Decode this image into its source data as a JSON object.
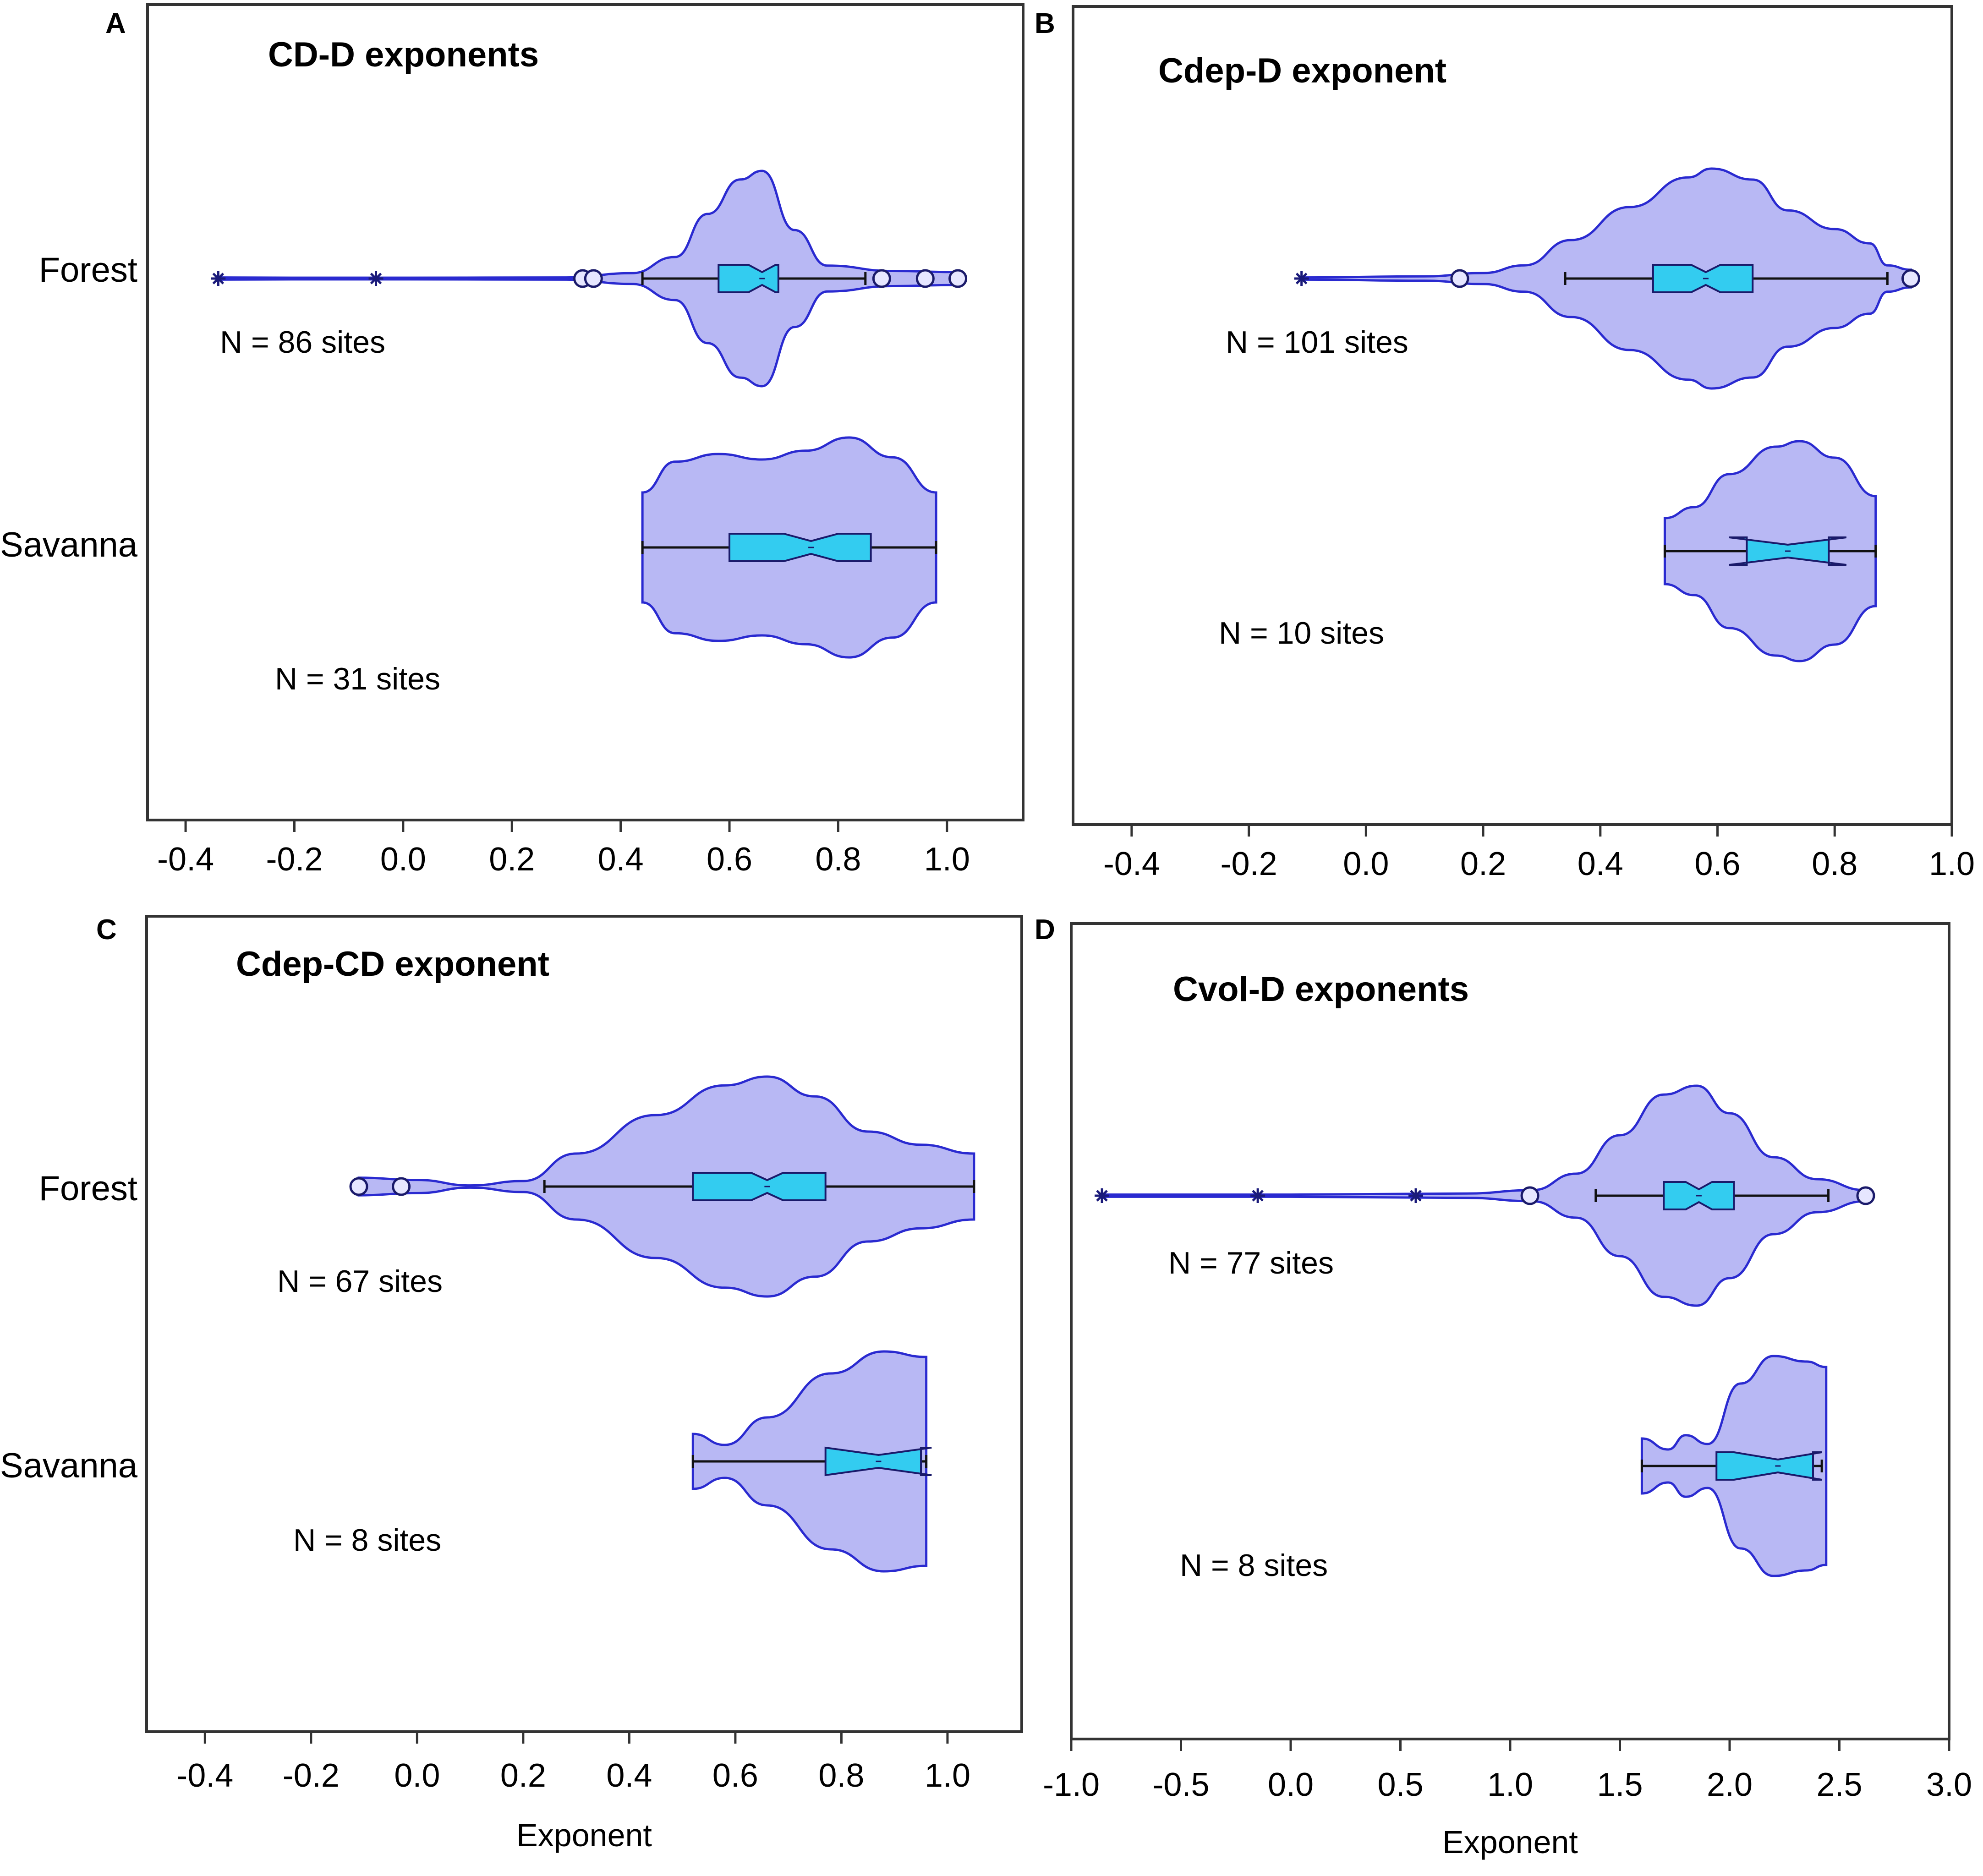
{
  "figure": {
    "colors": {
      "violin_fill": "#b8b8f4",
      "violin_stroke": "#2a2ad0",
      "box_fill": "#33ccf0",
      "axis": "#333333"
    }
  },
  "chart_data": [
    {
      "panel": "A",
      "type": "violin",
      "title": "CD-D exponents",
      "xlabel": "",
      "xlim": [
        -0.47,
        1.14
      ],
      "xticks": [
        -0.4,
        -0.2,
        0.0,
        0.2,
        0.4,
        0.6,
        0.8,
        1.0
      ],
      "xtick_labels": [
        "-0.4",
        "-0.2",
        "0.0",
        "0.2",
        "0.4",
        "0.6",
        "0.8",
        "1.0"
      ],
      "groups": [
        {
          "name": "Forest",
          "n_label": "N = 86 sites",
          "whisker_low": 0.44,
          "q1": 0.58,
          "median": 0.66,
          "q3": 0.69,
          "whisker_high": 0.85,
          "notch": 0.025,
          "outliers_circle": [
            0.33,
            0.35,
            0.88,
            0.96,
            1.02
          ],
          "outliers_star": [
            -0.34,
            -0.05
          ],
          "density": [
            [
              -0.34,
              0.01
            ],
            [
              -0.2,
              0.008
            ],
            [
              0.0,
              0.008
            ],
            [
              0.3,
              0.01
            ],
            [
              0.42,
              0.05
            ],
            [
              0.5,
              0.2
            ],
            [
              0.56,
              0.6
            ],
            [
              0.62,
              0.92
            ],
            [
              0.66,
              1.0
            ],
            [
              0.72,
              0.45
            ],
            [
              0.78,
              0.12
            ],
            [
              0.9,
              0.07
            ],
            [
              1.02,
              0.06
            ]
          ]
        },
        {
          "name": "Savanna",
          "n_label": "N = 31 sites",
          "whisker_low": 0.44,
          "q1": 0.6,
          "median": 0.75,
          "q3": 0.86,
          "whisker_high": 0.98,
          "notch": 0.05,
          "outliers_circle": [],
          "outliers_star": [],
          "density": [
            [
              0.44,
              0.5
            ],
            [
              0.5,
              0.78
            ],
            [
              0.58,
              0.85
            ],
            [
              0.66,
              0.8
            ],
            [
              0.74,
              0.88
            ],
            [
              0.82,
              1.0
            ],
            [
              0.9,
              0.82
            ],
            [
              0.98,
              0.5
            ]
          ]
        }
      ]
    },
    {
      "panel": "B",
      "type": "violin",
      "title": "Cdep-D exponent",
      "xlabel": "",
      "xlim": [
        -0.5,
        1.0
      ],
      "xticks": [
        -0.4,
        -0.2,
        0.0,
        0.2,
        0.4,
        0.6,
        0.8,
        1.0
      ],
      "xtick_labels": [
        "-0.4",
        "-0.2",
        "0.0",
        "0.2",
        "0.4",
        "0.6",
        "0.8",
        "1.0"
      ],
      "groups": [
        {
          "name": "Forest",
          "n_label": "N = 101 sites",
          "whisker_low": 0.34,
          "q1": 0.49,
          "median": 0.58,
          "q3": 0.66,
          "whisker_high": 0.89,
          "notch": 0.025,
          "outliers_circle": [
            0.16,
            0.93
          ],
          "outliers_star": [
            -0.11
          ],
          "density": [
            [
              -0.11,
              0.01
            ],
            [
              0.1,
              0.02
            ],
            [
              0.2,
              0.05
            ],
            [
              0.27,
              0.12
            ],
            [
              0.35,
              0.35
            ],
            [
              0.45,
              0.65
            ],
            [
              0.55,
              0.92
            ],
            [
              0.59,
              1.0
            ],
            [
              0.66,
              0.9
            ],
            [
              0.72,
              0.62
            ],
            [
              0.8,
              0.45
            ],
            [
              0.86,
              0.32
            ],
            [
              0.89,
              0.12
            ],
            [
              0.93,
              0.08
            ]
          ]
        },
        {
          "name": "Savanna",
          "n_label": "N = 10 sites",
          "whisker_low": 0.51,
          "q1": 0.65,
          "median": 0.72,
          "q3": 0.79,
          "whisker_high": 0.87,
          "notch": 0.1,
          "outliers_circle": [],
          "outliers_star": [],
          "density": [
            [
              0.51,
              0.3
            ],
            [
              0.56,
              0.4
            ],
            [
              0.62,
              0.7
            ],
            [
              0.7,
              0.95
            ],
            [
              0.74,
              1.0
            ],
            [
              0.8,
              0.85
            ],
            [
              0.87,
              0.5
            ]
          ]
        }
      ]
    },
    {
      "panel": "C",
      "type": "violin",
      "title": "Cdep-CD exponent",
      "xlabel": "Exponent",
      "xlim": [
        -0.51,
        1.14
      ],
      "xticks": [
        -0.4,
        -0.2,
        0.0,
        0.2,
        0.4,
        0.6,
        0.8,
        1.0
      ],
      "xtick_labels": [
        "-0.4",
        "-0.2",
        "0.0",
        "0.2",
        "0.4",
        "0.6",
        "0.8",
        "1.0"
      ],
      "groups": [
        {
          "name": "Forest",
          "n_label": "N = 67 sites",
          "whisker_low": 0.24,
          "q1": 0.52,
          "median": 0.66,
          "q3": 0.77,
          "whisker_high": 1.05,
          "notch": 0.03,
          "outliers_circle": [
            -0.11,
            -0.03
          ],
          "outliers_star": [],
          "density": [
            [
              -0.11,
              0.08
            ],
            [
              0.0,
              0.06
            ],
            [
              0.1,
              0.01
            ],
            [
              0.2,
              0.05
            ],
            [
              0.3,
              0.3
            ],
            [
              0.45,
              0.65
            ],
            [
              0.58,
              0.92
            ],
            [
              0.66,
              1.0
            ],
            [
              0.75,
              0.82
            ],
            [
              0.85,
              0.5
            ],
            [
              0.95,
              0.38
            ],
            [
              1.05,
              0.3
            ]
          ]
        },
        {
          "name": "Savanna",
          "n_label": "N = 8 sites",
          "whisker_low": 0.52,
          "q1": 0.77,
          "median": 0.87,
          "q3": 0.95,
          "whisker_high": 0.96,
          "notch": 0.1,
          "outliers_circle": [],
          "outliers_star": [],
          "density": [
            [
              0.52,
              0.25
            ],
            [
              0.58,
              0.15
            ],
            [
              0.66,
              0.4
            ],
            [
              0.78,
              0.8
            ],
            [
              0.88,
              1.0
            ],
            [
              0.96,
              0.95
            ]
          ]
        }
      ]
    },
    {
      "panel": "D",
      "type": "violin",
      "title": "Cvol-D exponents",
      "xlabel": "Exponent",
      "xlim": [
        -1.0,
        3.0
      ],
      "xticks": [
        -1.0,
        -0.5,
        0.0,
        0.5,
        1.0,
        1.5,
        2.0,
        2.5,
        3.0
      ],
      "xtick_labels": [
        "-1.0",
        "-0.5",
        "0.0",
        "0.5",
        "1.0",
        "1.5",
        "2.0",
        "2.5",
        "3.0"
      ],
      "groups": [
        {
          "name": "Forest",
          "n_label": "N = 77 sites",
          "whisker_low": 1.39,
          "q1": 1.7,
          "median": 1.86,
          "q3": 2.02,
          "whisker_high": 2.45,
          "notch": 0.06,
          "outliers_circle": [
            1.09,
            2.62
          ],
          "outliers_star": [
            -0.86,
            -0.15,
            0.57
          ],
          "density": [
            [
              -0.86,
              0.01
            ],
            [
              0.0,
              0.01
            ],
            [
              0.8,
              0.02
            ],
            [
              1.1,
              0.05
            ],
            [
              1.3,
              0.2
            ],
            [
              1.5,
              0.55
            ],
            [
              1.7,
              0.92
            ],
            [
              1.85,
              1.0
            ],
            [
              2.0,
              0.75
            ],
            [
              2.2,
              0.35
            ],
            [
              2.4,
              0.15
            ],
            [
              2.62,
              0.05
            ]
          ]
        },
        {
          "name": "Savanna",
          "n_label": "N = 8 sites",
          "whisker_low": 1.6,
          "q1": 1.94,
          "median": 2.22,
          "q3": 2.38,
          "whisker_high": 2.42,
          "notch": 0.2,
          "outliers_circle": [],
          "outliers_star": [],
          "density": [
            [
              1.6,
              0.25
            ],
            [
              1.72,
              0.15
            ],
            [
              1.8,
              0.28
            ],
            [
              1.9,
              0.2
            ],
            [
              2.05,
              0.75
            ],
            [
              2.2,
              1.0
            ],
            [
              2.35,
              0.95
            ],
            [
              2.44,
              0.9
            ]
          ]
        }
      ]
    }
  ]
}
